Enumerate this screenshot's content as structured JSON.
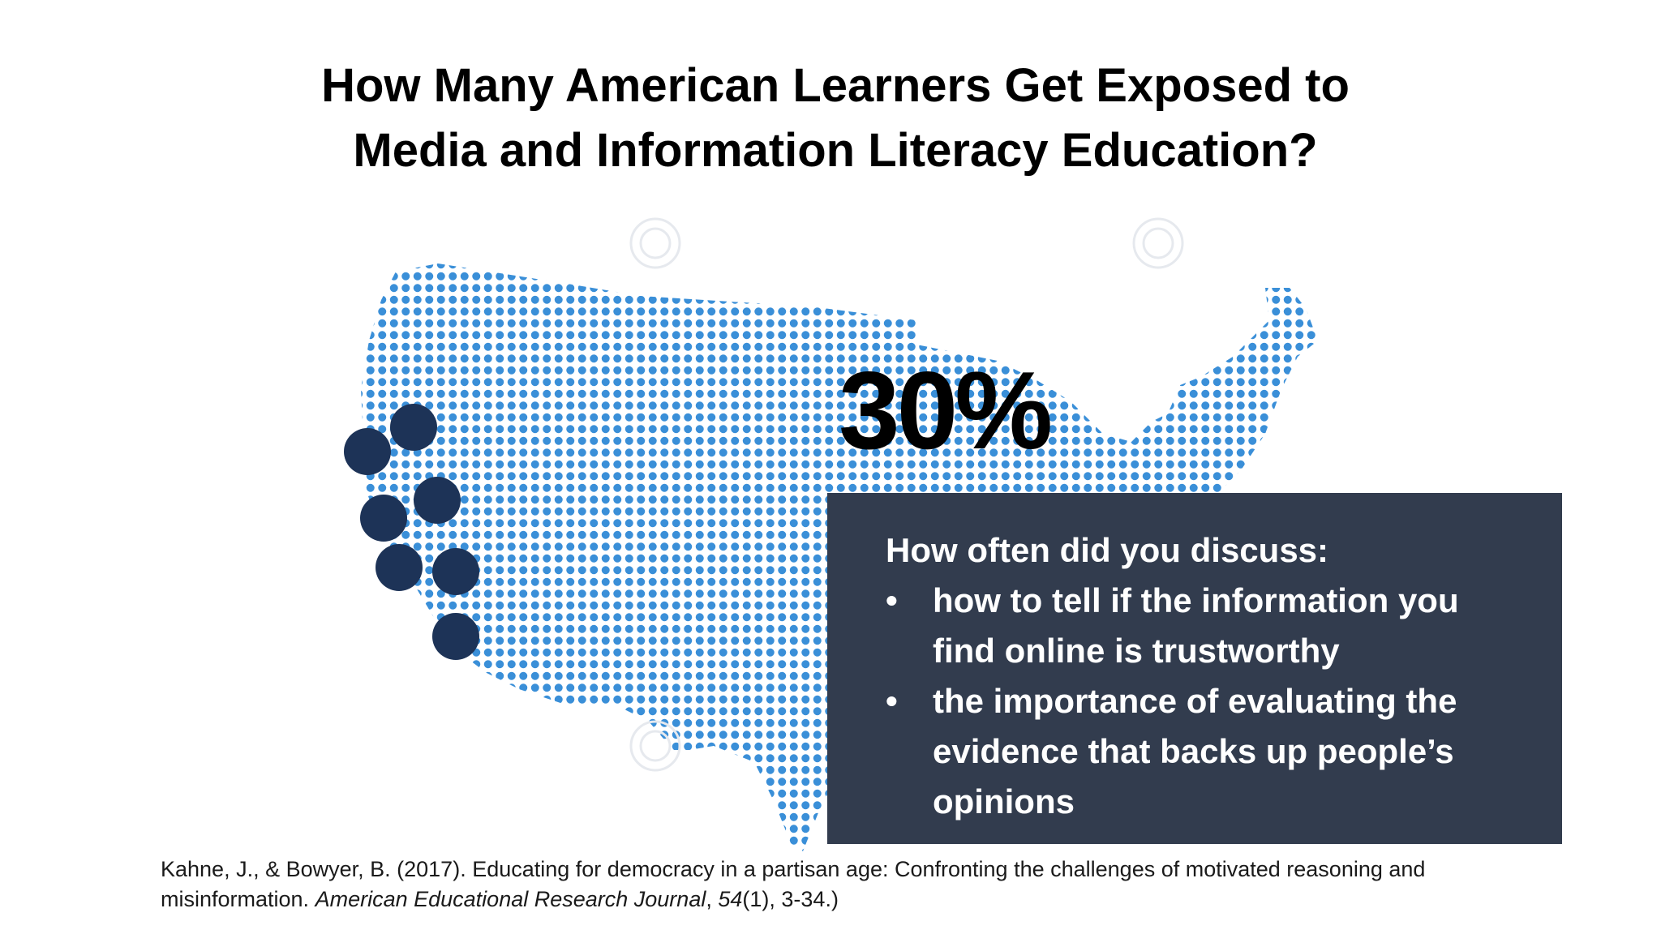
{
  "slide": {
    "title_lines": [
      "How Many American Learners Get Exposed to",
      "Media and Information Literacy Education?"
    ],
    "big_stat": "30%",
    "question": {
      "heading": "How often did you discuss:",
      "bullet_symbol": "•",
      "bullets": [
        "how to tell if the information you find online is trustworthy",
        "the importance of evaluating the evidence that backs up people’s opinions"
      ]
    },
    "citation": {
      "authors_and_title": "Kahne, J., & Bowyer, B. (2017). Educating for democracy in a partisan age: Confronting the challenges of motivated reasoning and misinformation.",
      "journal": "American Educational Research Journal",
      "volume": "54",
      "issue_pages": "(1), 3-34.)"
    },
    "map_image": {
      "description_icon": "dotted-usa-map",
      "dot_color": "#3a8fd8",
      "highlight_color": "#1d3357",
      "highlight_dot_count": 7
    },
    "colors": {
      "box_background": "#323c4e",
      "box_text": "#ffffff"
    }
  }
}
